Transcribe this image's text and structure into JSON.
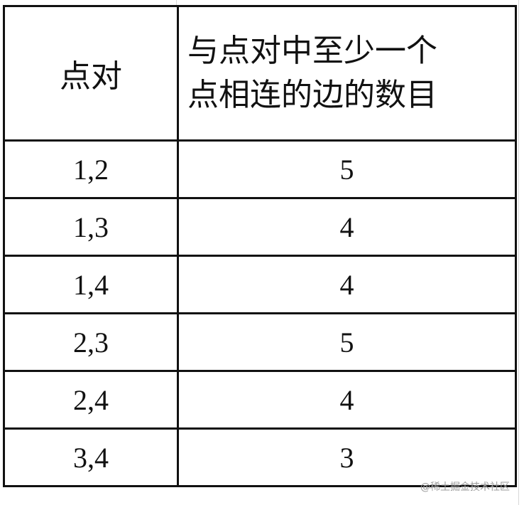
{
  "table": {
    "headers": [
      "点对",
      "与点对中至少一个点相连的边的数目"
    ],
    "header_lines": [
      "与点对中至少一个",
      "点相连的边的数目"
    ],
    "rows": [
      {
        "pair": "1,2",
        "count": "5"
      },
      {
        "pair": "1,3",
        "count": "4"
      },
      {
        "pair": "1,4",
        "count": "4"
      },
      {
        "pair": "2,3",
        "count": "5"
      },
      {
        "pair": "2,4",
        "count": "4"
      },
      {
        "pair": "3,4",
        "count": "3"
      }
    ]
  },
  "watermark": "@稀土掘金技术社区"
}
